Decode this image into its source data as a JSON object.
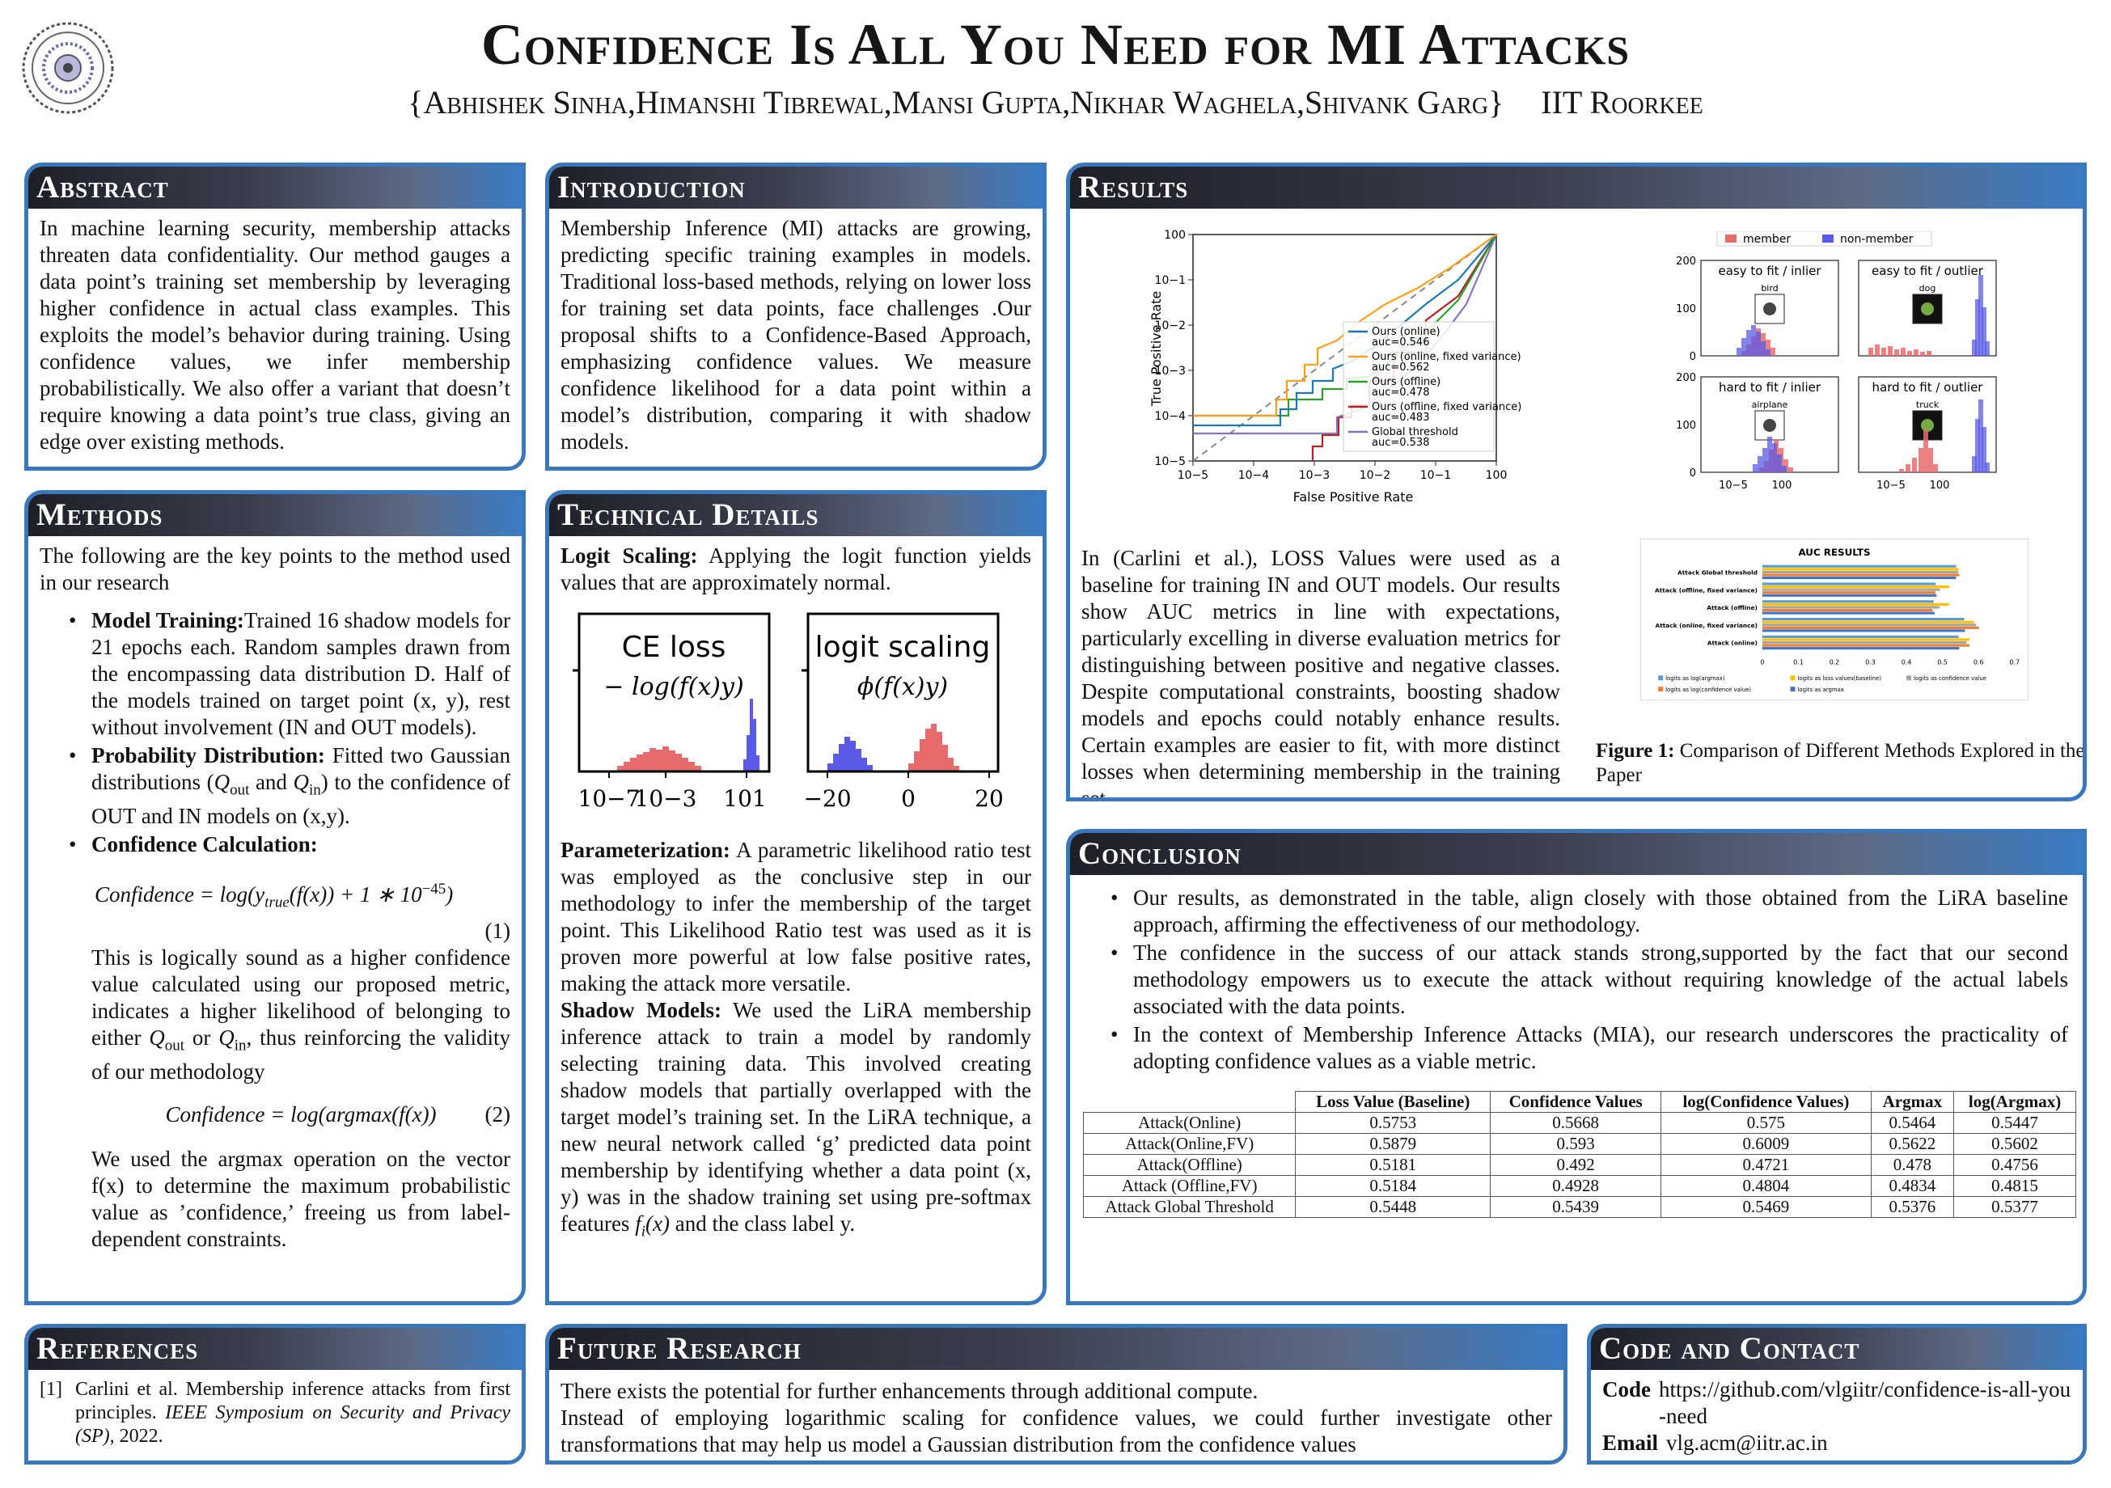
{
  "header": {
    "title": "Confidence Is All You Need for MI Attacks",
    "authors": "{Abhishek Sinha,Himanshi Tibrewal,Mansi Gupta,Nikhar Waghela,Shivank Garg}",
    "affiliation": "IIT Roorkee"
  },
  "abstract": {
    "title": "Abstract",
    "text": "In machine learning security, membership attacks threaten data confidentiality. Our method gauges a data point’s training set membership by leveraging higher confidence in actual class examples. This exploits the model’s behavior during training. Using confidence values, we infer membership probabilistically. We also offer a variant that doesn’t require knowing a data point’s true class, giving an edge over existing methods."
  },
  "introduction": {
    "title": "Introduction",
    "text": "Membership Inference (MI) attacks are growing, predicting specific training examples in models. Traditional loss-based methods, relying on lower loss for training set data points, face challenges .Our proposal shifts to a Confidence-Based Approach, emphasizing confidence values. We measure confidence likelihood for a data point within a model’s distribution, comparing it with shadow models."
  },
  "methods": {
    "title": "Methods",
    "intro": "The following are the key points to the method used in our research",
    "b1_label": "Model Training:",
    "b1_text": "Trained 16 shadow models for 21 epochs each. Random samples drawn from the encompassing data distribution D. Half of the models trained on target point (x, y), rest without involvement (IN and OUT models).",
    "b2_label": "Probability Distribution:",
    "b2_text_a": " Fitted two Gaussian distributions (",
    "b2_text_b": " and ",
    "b2_text_c": ") to the confidence of OUT and IN models on (x,y).",
    "q_out": "Qout",
    "q_in": "Qin",
    "b3_label": "Confidence Calculation:",
    "eq1_num": "(1)",
    "para1_a": "This is logically sound as a higher confidence value calculated using our proposed metric, indicates a higher likelihood of belonging to either ",
    "para1_b": " or ",
    "para1_c": ", thus reinforcing the validity of our methodology",
    "eq2_num": "(2)",
    "para2": "We used the argmax operation on the vector f(x) to determine the maximum probabilistic value as ’confidence,’ freeing us from label-dependent constraints."
  },
  "technical": {
    "title": "Technical Details",
    "logit_label": "Logit Scaling:",
    "logit_text": " Applying the logit function yields values that are approximately normal.",
    "fig_ce_title": "CE loss",
    "fig_ce_formula": "− log(f(x)y)",
    "fig_ce_ticks": [
      "10−7",
      "10−3",
      "101"
    ],
    "fig_logit_title": "logit scaling",
    "fig_logit_formula": "ϕ(f(x)y)",
    "fig_logit_ticks": [
      "−20",
      "0",
      "20"
    ],
    "param_label": "Parameterization:",
    "param_text": " A parametric likelihood ratio test was employed as the conclusive step in our methodology to infer the membership of the target point. This Likelihood Ratio test was used as it is proven more powerful at low false positive rates, making the attack more versatile.",
    "shadow_label": "Shadow Models:",
    "shadow_text_a": " We used the LiRA membership inference attack to train a model by randomly selecting training data. This involved creating shadow models that partially overlapped with the target model’s training set. In the LiRA technique, a new neural network called ‘g’ predicted data point membership by identifying whether a data point (x, y) was in the shadow training set using pre-softmax features ",
    "shadow_fx": "fi(x)",
    "shadow_text_b": " and the class label y."
  },
  "results": {
    "title": "Results",
    "roc": {
      "ylabel": "True Positive Rate",
      "xlabel": "False Positive Rate",
      "xticks": [
        "10−5",
        "10−4",
        "10−3",
        "10−2",
        "10−1",
        "100"
      ],
      "yticks": [
        "100",
        "10−1",
        "10−2",
        "10−3",
        "10−4",
        "10−5"
      ],
      "legend": [
        {
          "name": "Ours (online)",
          "auc": "auc=0.546",
          "color": "#1f77b4"
        },
        {
          "name": "Ours (online, fixed variance)",
          "auc": "auc=0.562",
          "color": "#ff9f1c"
        },
        {
          "name": "Ours (offline)",
          "auc": "auc=0.478",
          "color": "#2ca02c"
        },
        {
          "name": "Ours (offline, fixed variance)",
          "auc": "auc=0.483",
          "color": "#b22222"
        },
        {
          "name": "Global threshold",
          "auc": "auc=0.538",
          "color": "#8a6fbf"
        }
      ]
    },
    "hist": {
      "legend_member": "member",
      "legend_nonmember": "non-member",
      "panels": [
        "easy to fit / inlier",
        "easy to fit / outlier",
        "hard to fit / inlier",
        "hard to fit / outlier"
      ],
      "thumbs": [
        "bird",
        "dog",
        "airplane",
        "truck"
      ],
      "yticks": [
        "200",
        "100",
        "0"
      ],
      "xticks": [
        "10−5",
        "100"
      ]
    },
    "text": "In (Carlini et al.), LOSS Values were used as a baseline for training IN and OUT models. Our results show AUC metrics in line with expectations, particularly excelling in diverse evaluation metrics for distinguishing between positive and negative classes. Despite computational constraints, boosting shadow models and epochs could notably enhance results. Certain examples are easier to fit, with more distinct losses when determining membership in the training set.",
    "auc_chart": {
      "title": "AUC RESULTS",
      "categories": [
        "Attack Global threshold",
        "Attack (offline, fixed variance)",
        "Attack (offline)",
        "Attack (online, fixed variance)",
        "Attack (online)"
      ],
      "xticks": [
        "0",
        "0.1",
        "0.2",
        "0.3",
        "0.4",
        "0.5",
        "0.6",
        "0.7"
      ],
      "legend": [
        "logits as log(argmax)",
        "logits as loss values(baseline)",
        "logits as confidence value",
        "logits as log(confidence value)",
        "logits as argmax"
      ]
    },
    "caption_label": "Figure 1:",
    "caption_text": " Comparison of Different Methods Explored in the Paper"
  },
  "chart_data": {
    "type": "bar",
    "title": "AUC RESULTS",
    "categories": [
      "Attack Global threshold",
      "Attack (offline, fixed variance)",
      "Attack (offline)",
      "Attack (online, fixed variance)",
      "Attack (online)"
    ],
    "xlim": [
      0,
      0.7
    ],
    "series": [
      {
        "name": "logits as log(argmax)",
        "color": "#5b9bd5",
        "values": [
          0.5377,
          0.4815,
          0.4756,
          0.5602,
          0.5447
        ]
      },
      {
        "name": "logits as loss values(baseline)",
        "color": "#ffc000",
        "values": [
          0.5448,
          0.5184,
          0.5181,
          0.5879,
          0.5753
        ]
      },
      {
        "name": "logits as confidence value",
        "color": "#a5a5a5",
        "values": [
          0.5439,
          0.4928,
          0.492,
          0.593,
          0.5668
        ]
      },
      {
        "name": "logits as log(confidence value)",
        "color": "#ed7d31",
        "values": [
          0.5469,
          0.4804,
          0.4721,
          0.6009,
          0.575
        ]
      },
      {
        "name": "logits as argmax",
        "color": "#4472c4",
        "values": [
          0.5376,
          0.4834,
          0.478,
          0.5622,
          0.5464
        ]
      }
    ]
  },
  "conclusion": {
    "title": "Conclusion",
    "bullets": [
      "Our results, as demonstrated in the table, align closely with those obtained from the LiRA baseline approach, affirming the effectiveness of our methodology.",
      "The confidence in the success of our attack stands strong,supported by the fact that our second methodology empowers us to execute the attack without requiring knowledge of the actual labels associated with the data points.",
      "In the context of Membership Inference Attacks (MIA), our research underscores the practicality of adopting confidence values as a viable metric."
    ],
    "table": {
      "headers": [
        "Loss Value (Baseline)",
        "Confidence Values",
        "log(Confidence Values)",
        "Argmax",
        "log(Argmax)"
      ],
      "rows": [
        {
          "label": "Attack(Online)",
          "cells": [
            "0.5753",
            "0.5668",
            "0.575",
            "0.5464",
            "0.5447"
          ]
        },
        {
          "label": "Attack(Online,FV)",
          "cells": [
            "0.5879",
            "0.593",
            "0.6009",
            "0.5622",
            "0.5602"
          ]
        },
        {
          "label": "Attack(Offline)",
          "cells": [
            "0.5181",
            "0.492",
            "0.4721",
            "0.478",
            "0.4756"
          ]
        },
        {
          "label": "Attack (Offline,FV)",
          "cells": [
            "0.5184",
            "0.4928",
            "0.4804",
            "0.4834",
            "0.4815"
          ]
        },
        {
          "label": "Attack Global Threshold",
          "cells": [
            "0.5448",
            "0.5439",
            "0.5469",
            "0.5376",
            "0.5377"
          ]
        }
      ]
    }
  },
  "references": {
    "title": "References",
    "num": "[1]",
    "text_a": "Carlini et al. Membership inference attacks from first principles. ",
    "venue": "IEEE Symposium on Security and Privacy (SP)",
    "text_b": ", 2022."
  },
  "future": {
    "title": "Future Research",
    "line1": "There exists the potential for further enhancements through additional compute.",
    "line2": "Instead of employing logarithmic scaling for confidence values, we could further investigate other transformations that may help us model a Gaussian distribution from the confidence values"
  },
  "contact": {
    "title": "Code and Contact",
    "code_label": "Code",
    "code_value": "https://github.com/vlgiitr/confidence-is-all-you-need",
    "email_label": "Email",
    "email_value": "vlg.acm@iitr.ac.in"
  },
  "colors": {
    "accent": "#3a78bd",
    "member": "#e86b6b",
    "nonmember": "#5a5ae6"
  }
}
